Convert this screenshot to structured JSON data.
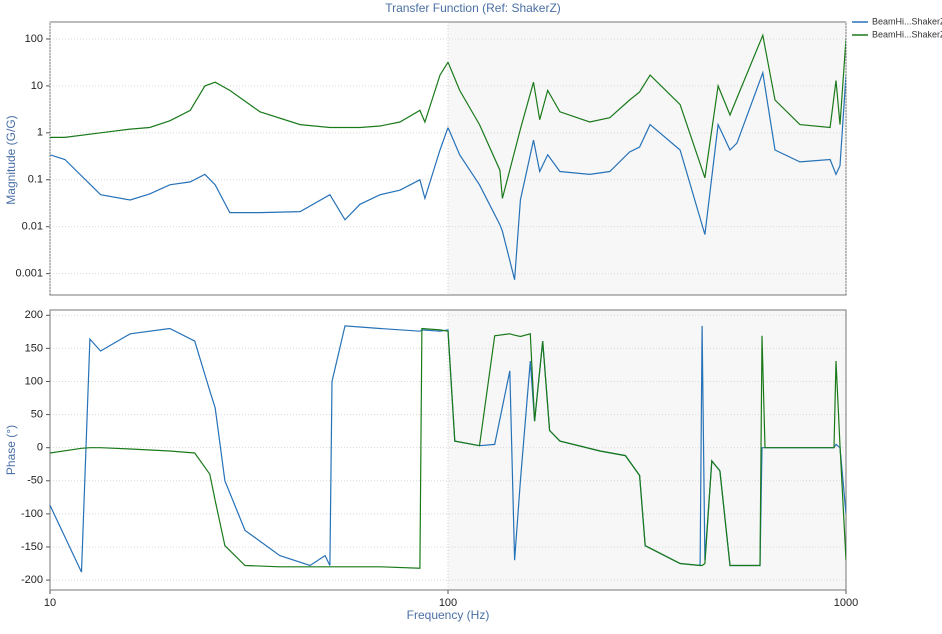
{
  "chart_data": [
    {
      "type": "line",
      "title": "Transfer Function (Ref: ShakerZ)",
      "ylabel": "Magnitude (G/G)",
      "log_x": true,
      "log_y": true,
      "legend": "top-right",
      "x": [
        10,
        10.9,
        13.4,
        15.9,
        17.8,
        20.0,
        22.5,
        24.5,
        26.0,
        28.3,
        33.7,
        42.5,
        50.5,
        55.1,
        60.1,
        67.5,
        75.7,
        85.0,
        87.5,
        95.5,
        100,
        107,
        120,
        135,
        137,
        147,
        152,
        164,
        170,
        178,
        191,
        227,
        255,
        286,
        303,
        322,
        383,
        442,
        477,
        511,
        532,
        618,
        663,
        766,
        912,
        944,
        966,
        1000
      ],
      "xlim": [
        10,
        1000
      ],
      "ylim": [
        0.00035,
        230
      ],
      "yticks": [
        100,
        10,
        1,
        0.1,
        0.01,
        0.001
      ],
      "series": [
        {
          "name": "BeamHi...ShakerZ",
          "color": "#2672b8",
          "values": [
            0.34,
            0.27,
            0.048,
            0.037,
            0.05,
            0.078,
            0.09,
            0.13,
            0.078,
            0.02,
            0.02,
            0.021,
            0.048,
            0.014,
            0.03,
            0.048,
            0.06,
            0.1,
            0.04,
            0.43,
            1.3,
            0.34,
            0.078,
            0.011,
            0.008,
            0.00074,
            0.037,
            0.7,
            0.15,
            0.34,
            0.15,
            0.13,
            0.15,
            0.39,
            0.5,
            1.5,
            0.43,
            0.0068,
            1.5,
            0.43,
            0.6,
            19,
            0.43,
            0.24,
            0.27,
            0.13,
            0.2,
            17
          ]
        },
        {
          "name": "BeamHi...ShakerZ",
          "color": "#1a7a1a",
          "values": [
            0.8,
            0.8,
            1,
            1.2,
            1.3,
            1.8,
            3,
            10,
            12,
            8,
            2.8,
            1.5,
            1.3,
            1.3,
            1.3,
            1.4,
            1.7,
            3,
            1.7,
            17,
            32,
            8,
            1.5,
            0.16,
            0.04,
            0.4,
            1.2,
            12,
            1.9,
            8,
            2.8,
            1.7,
            2.1,
            5,
            7.4,
            17,
            4,
            0.11,
            10,
            2.4,
            5.5,
            120,
            5,
            1.5,
            1.3,
            13,
            1.5,
            100
          ]
        }
      ]
    },
    {
      "type": "line",
      "xlabel": "Frequency (Hz)",
      "ylabel": "Phase (°)",
      "log_x": true,
      "log_y": false,
      "x": [
        10,
        12.0,
        12.6,
        13.4,
        15.9,
        20.0,
        23.1,
        25.2,
        26.0,
        27.5,
        30.9,
        37.8,
        45.0,
        49.1,
        50.5,
        51.1,
        55.1,
        67.5,
        85.0,
        86.0,
        95.5,
        100,
        104,
        120,
        131,
        143,
        147,
        152,
        161,
        165,
        173,
        180,
        191,
        241,
        279,
        303,
        313,
        383,
        430,
        435,
        442,
        460,
        482,
        511,
        608,
        615,
        626,
        766,
        933,
        944,
        966,
        1000
      ],
      "xlim": [
        10,
        1000
      ],
      "xticks": [
        10,
        100,
        1000
      ],
      "ylim": [
        -215,
        208
      ],
      "yticks": [
        200,
        150,
        100,
        50,
        0,
        -50,
        -100,
        -150,
        -200
      ],
      "series": [
        {
          "name": "BeamHi...ShakerZ",
          "color": "#2672b8",
          "values": [
            -87,
            -188,
            164,
            146,
            172,
            180,
            161,
            86,
            60,
            -50,
            -125,
            -163,
            -178,
            -163,
            -178,
            100,
            184,
            180,
            176,
            178,
            176,
            178,
            10,
            3,
            5,
            116,
            -170,
            -50,
            131,
            40,
            161,
            26,
            10,
            -5,
            -12,
            -42,
            -148,
            -175,
            -178,
            184,
            -170,
            -20,
            -35,
            -178,
            -178,
            0,
            0,
            0,
            0,
            5,
            0,
            -100
          ]
        },
        {
          "name": "BeamHi...ShakerZ",
          "color": "#1a7a1a",
          "values": [
            -8,
            -1,
            0,
            0,
            -2,
            -5,
            -8,
            -40,
            -80,
            -148,
            -178,
            -180,
            -180,
            -180,
            -180,
            -180,
            -180,
            -180,
            -182,
            180,
            178,
            176,
            10,
            3,
            169,
            172,
            170,
            168,
            172,
            40,
            161,
            26,
            10,
            -5,
            -12,
            -42,
            -148,
            -175,
            -178,
            -178,
            -175,
            -20,
            -35,
            -178,
            -178,
            169,
            0,
            0,
            0,
            131,
            3,
            -170
          ]
        }
      ]
    }
  ]
}
